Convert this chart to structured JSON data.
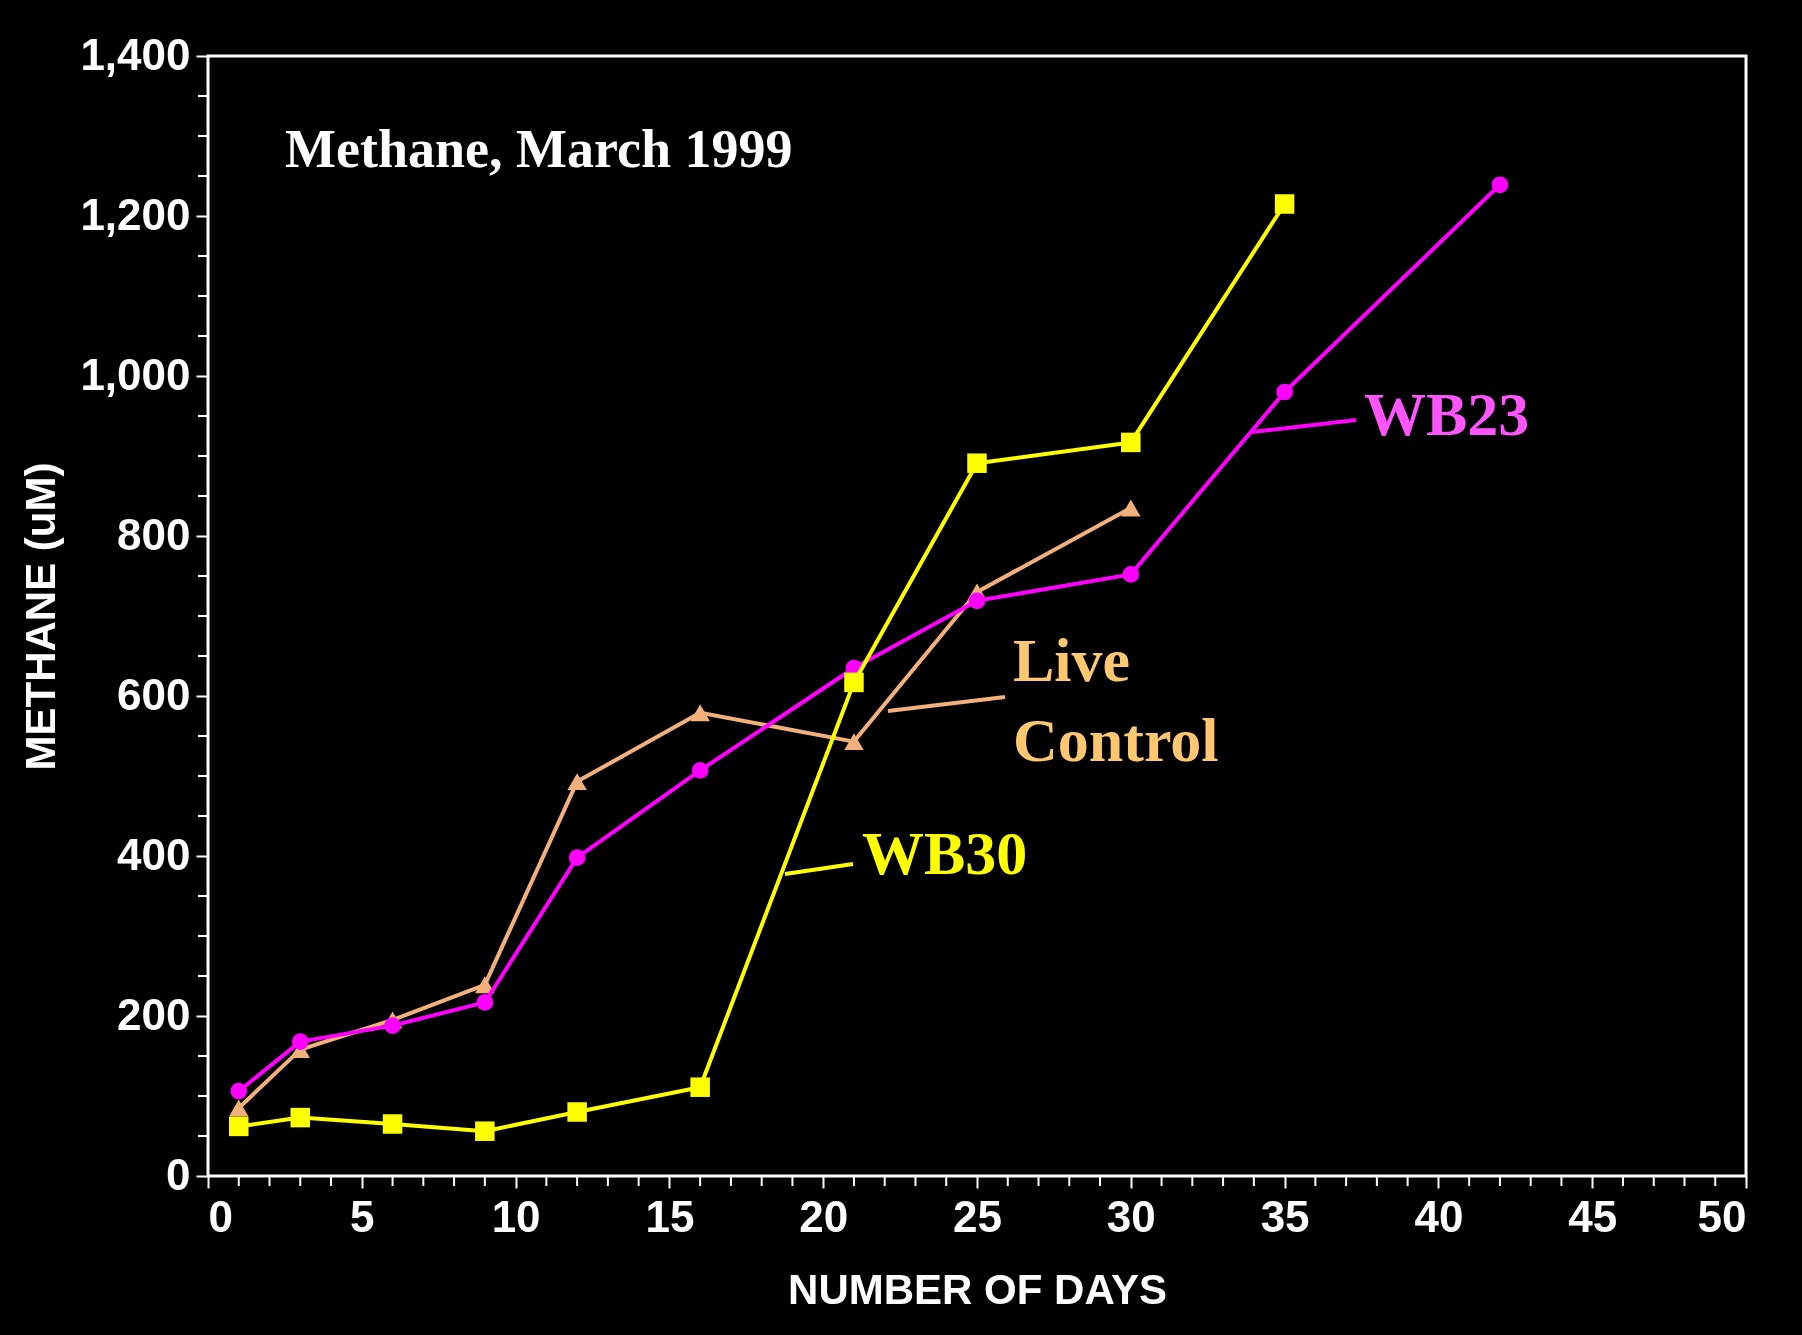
{
  "chart_data": {
    "type": "line",
    "title": "Methane, March 1999",
    "xlabel": "NUMBER OF DAYS",
    "ylabel": "METHANE (uM)",
    "xlim": [
      0,
      50
    ],
    "ylim": [
      0,
      1400
    ],
    "grid": false,
    "legend": "right",
    "xticks": [
      0,
      {
        "value": 1,
        "label": null
      },
      {
        "value": 2,
        "label": null
      },
      {
        "value": 3,
        "label": null
      },
      {
        "value": 4,
        "label": null
      },
      5,
      {
        "value": 6,
        "label": null
      },
      {
        "value": 7,
        "label": null
      },
      {
        "value": 8,
        "label": null
      },
      {
        "value": 9,
        "label": null
      },
      10,
      {
        "value": 11,
        "label": null
      },
      {
        "value": 12,
        "label": null
      },
      {
        "value": 13,
        "label": null
      },
      {
        "value": 14,
        "label": null
      },
      15,
      {
        "value": 16,
        "label": null
      },
      {
        "value": 17,
        "label": null
      },
      {
        "value": 18,
        "label": null
      },
      {
        "value": 19,
        "label": null
      },
      20,
      {
        "value": 21,
        "label": null
      },
      {
        "value": 22,
        "label": null
      },
      {
        "value": 23,
        "label": null
      },
      {
        "value": 24,
        "label": null
      },
      25,
      {
        "value": 26,
        "label": null
      },
      {
        "value": 27,
        "label": null
      },
      {
        "value": 28,
        "label": null
      },
      {
        "value": 29,
        "label": null
      },
      30,
      {
        "value": 31,
        "label": null
      },
      {
        "value": 32,
        "label": null
      },
      {
        "value": 33,
        "label": null
      },
      {
        "value": 34,
        "label": null
      },
      35,
      {
        "value": 36,
        "label": null
      },
      {
        "value": 37,
        "label": null
      },
      {
        "value": 38,
        "label": null
      },
      {
        "value": 39,
        "label": null
      },
      40,
      {
        "value": 41,
        "label": null
      },
      {
        "value": 42,
        "label": null
      },
      {
        "value": 43,
        "label": null
      },
      {
        "value": 44,
        "label": null
      },
      45,
      {
        "value": 46,
        "label": null
      },
      {
        "value": 47,
        "label": null
      },
      {
        "value": 48,
        "label": null
      },
      {
        "value": 49,
        "label": null
      },
      50
    ],
    "yticks": [
      0,
      {
        "value": 50,
        "label": null
      },
      {
        "value": 100,
        "label": null
      },
      {
        "value": 150,
        "label": null
      },
      200,
      {
        "value": 250,
        "label": null
      },
      {
        "value": 300,
        "label": null
      },
      {
        "value": 350,
        "label": null
      },
      400,
      {
        "value": 450,
        "label": null
      },
      {
        "value": 500,
        "label": null
      },
      {
        "value": 550,
        "label": null
      },
      600,
      {
        "value": 650,
        "label": null
      },
      {
        "value": 700,
        "label": null
      },
      {
        "value": 750,
        "label": null
      },
      800,
      {
        "value": 850,
        "label": null
      },
      {
        "value": 900,
        "label": null
      },
      {
        "value": 950,
        "label": null
      },
      {
        "value": 1000,
        "label": "1,000"
      },
      {
        "value": 1050,
        "label": null
      },
      {
        "value": 1100,
        "label": null
      },
      {
        "value": 1150,
        "label": null
      },
      {
        "value": 1200,
        "label": "1,200"
      },
      {
        "value": 1250,
        "label": null
      },
      {
        "value": 1300,
        "label": null
      },
      {
        "value": 1350,
        "label": null
      },
      {
        "value": 1400,
        "label": "1,400"
      }
    ],
    "series": [
      {
        "name": "Live Control",
        "color": "#f4b07a",
        "marker": "triangle",
        "x": [
          1,
          3,
          6,
          9,
          12,
          16,
          21,
          25,
          30
        ],
        "values": [
          85,
          158,
          195,
          239,
          493,
          579,
          543,
          730,
          835
        ]
      },
      {
        "name": "WB23",
        "color": "#ff00ff",
        "marker": "circle",
        "x": [
          1,
          3,
          6,
          9,
          12,
          16,
          21,
          25,
          30,
          35,
          42
        ],
        "values": [
          106,
          168,
          188,
          217,
          398,
          507,
          635,
          719,
          752,
          980,
          1239
        ]
      },
      {
        "name": "WB30",
        "color": "#ffff00",
        "marker": "square",
        "x": [
          1,
          3,
          6,
          9,
          12,
          16,
          21,
          25,
          30,
          35
        ],
        "values": [
          62,
          73,
          65,
          56,
          80,
          111,
          617,
          891,
          917,
          1215
        ]
      }
    ]
  }
}
